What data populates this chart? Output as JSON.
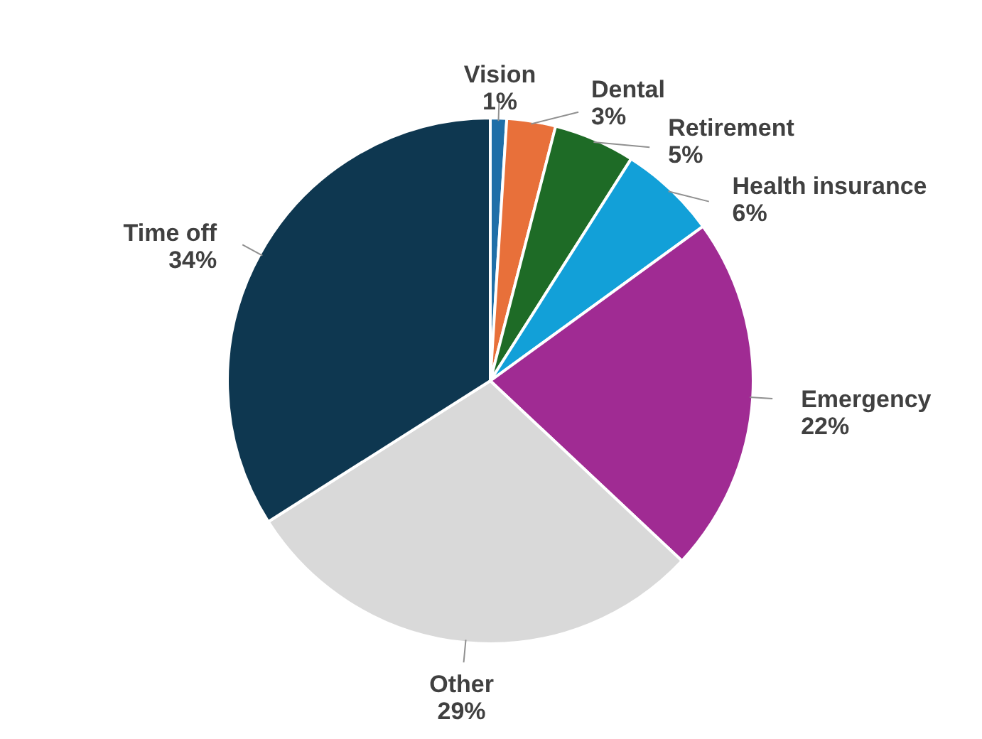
{
  "chart_data": {
    "type": "pie",
    "categories": [
      "Vision",
      "Dental",
      "Retirement",
      "Health insurance",
      "Emergency",
      "Other",
      "Time off"
    ],
    "values": [
      1,
      3,
      5,
      6,
      22,
      29,
      34
    ],
    "value_labels": [
      "1%",
      "3%",
      "5%",
      "6%",
      "22%",
      "29%",
      "34%"
    ],
    "colors": [
      "#1f6fa8",
      "#e8703a",
      "#1e6b26",
      "#12a0d8",
      "#a02b93",
      "#d9d9d9",
      "#0e3750"
    ]
  }
}
